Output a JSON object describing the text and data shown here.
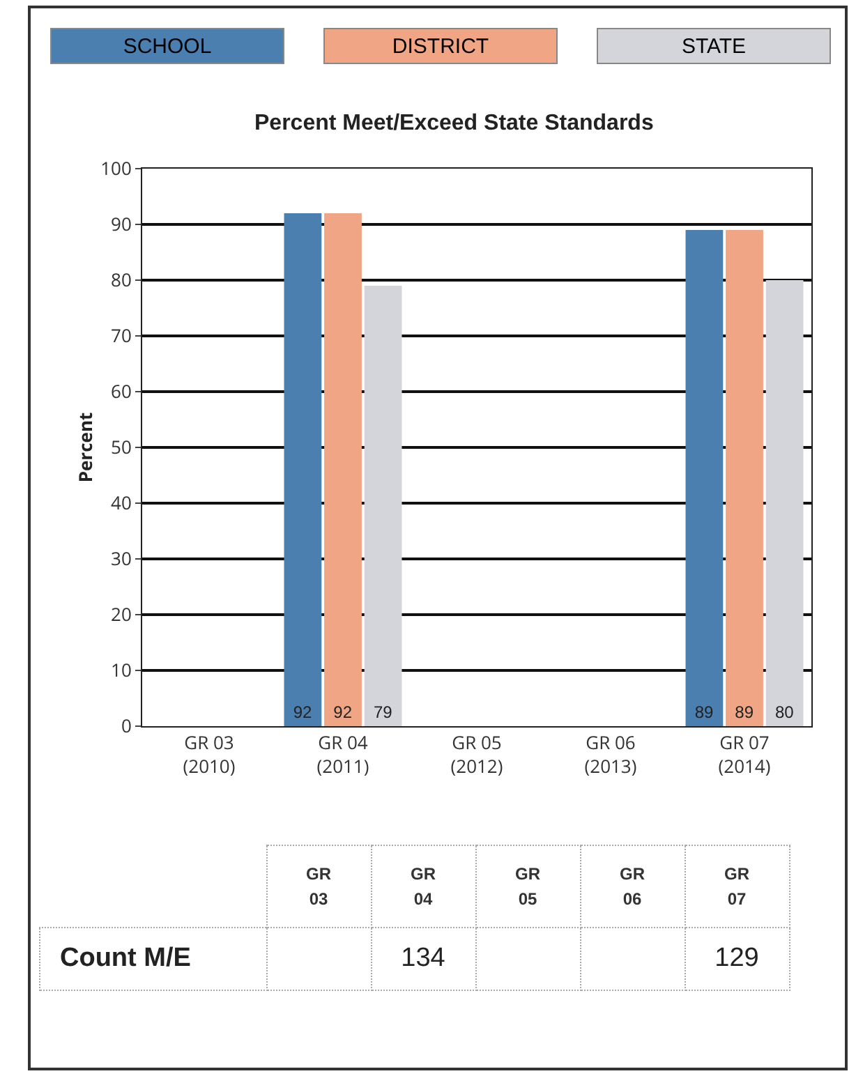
{
  "chart_data": [
    {
      "type": "bar",
      "title": "Percent Meet/Exceed State Standards",
      "ylabel": "Percent",
      "categories": [
        "GR 03 (2010)",
        "GR 04 (2011)",
        "GR 05 (2012)",
        "GR 06 (2013)",
        "GR 07 (2014)"
      ],
      "series": [
        {
          "name": "SCHOOL",
          "color": "#4a7fb0",
          "values": [
            null,
            92,
            null,
            null,
            89
          ]
        },
        {
          "name": "DISTRICT",
          "color": "#f0a584",
          "values": [
            null,
            92,
            null,
            null,
            89
          ]
        },
        {
          "name": "STATE",
          "color": "#d4d5da",
          "values": [
            null,
            79,
            null,
            null,
            80
          ]
        }
      ],
      "ylim": [
        0,
        100
      ],
      "yticks": [
        0,
        10,
        20,
        30,
        40,
        50,
        60,
        70,
        80,
        90,
        100
      ],
      "grid": "y",
      "legend": "top",
      "data_labels": true
    },
    {
      "type": "heatmap",
      "categories": [
        "GR 03",
        "GR 04",
        "GR 05",
        "GR 06",
        "GR 07"
      ],
      "y_categories": [
        "Count M/E"
      ],
      "cells": [
        [
          null,
          134,
          null,
          null,
          129
        ]
      ],
      "data_labels": true
    }
  ]
}
